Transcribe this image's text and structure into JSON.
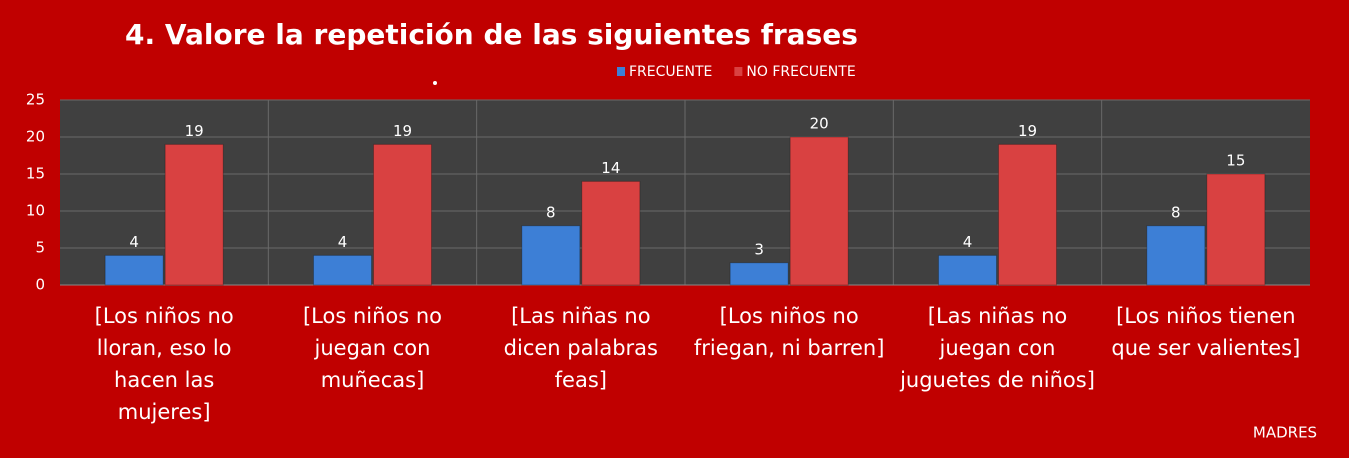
{
  "chart_data": {
    "type": "bar",
    "title": "4. Valore la repetición de las siguientes frases",
    "categories": [
      "[Los niños no lloran, eso lo hacen las mujeres]",
      "[Los niños no juegan con muñecas]",
      "[Las niñas no dicen palabras feas]",
      "[Los niños no friegan, ni barren]",
      "[Las niñas no juegan con juguetes de niños]",
      "[Los niños tienen que ser valientes]"
    ],
    "series": [
      {
        "name": "FRECUENTE",
        "color": "#3d7fd6",
        "values": [
          4,
          4,
          8,
          3,
          4,
          8
        ]
      },
      {
        "name": "NO FRECUENTE",
        "color": "#d94141",
        "values": [
          19,
          19,
          14,
          20,
          19,
          15
        ]
      }
    ],
    "ylim": [
      0,
      25
    ],
    "yticks": [
      0,
      5,
      10,
      15,
      20,
      25
    ],
    "grid": true,
    "legend": "top",
    "annotation": "MADRES"
  }
}
